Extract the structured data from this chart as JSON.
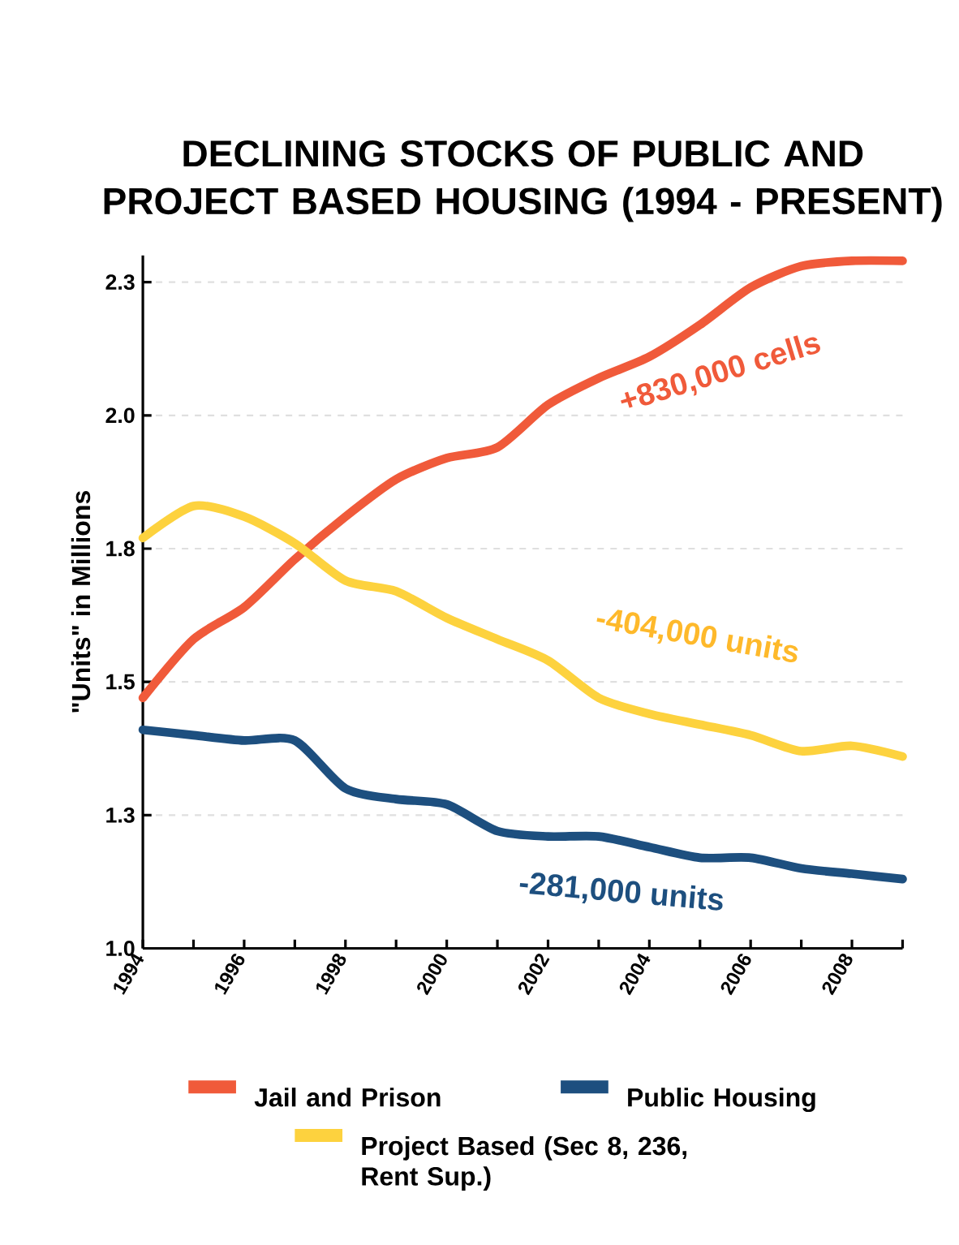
{
  "chart_data": {
    "type": "line",
    "title": "DECLINING STOCKS OF PUBLIC AND PROJECT BASED HOUSING (1994 - PRESENT)",
    "ylabel": "\"Units\" in Millions",
    "x": [
      1994,
      1995,
      1996,
      1997,
      1998,
      1999,
      2000,
      2001,
      2002,
      2003,
      2004,
      2005,
      2006,
      2007,
      2008,
      2009
    ],
    "series": [
      {
        "name": "Jail and Prison",
        "color": "#f05a3a",
        "values": [
          1.47,
          1.58,
          1.64,
          1.73,
          1.81,
          1.88,
          1.92,
          1.94,
          2.02,
          2.07,
          2.11,
          2.17,
          2.24,
          2.28,
          2.29,
          2.29
        ]
      },
      {
        "name": "Public Housing",
        "color": "#1d4f7f",
        "values": [
          1.41,
          1.4,
          1.39,
          1.39,
          1.3,
          1.28,
          1.27,
          1.22,
          1.21,
          1.21,
          1.19,
          1.17,
          1.17,
          1.15,
          1.14,
          1.13
        ]
      },
      {
        "name": "Project Based (Sec 8, 236, Rent Sup.)",
        "color": "#fdd23e",
        "values": [
          1.77,
          1.83,
          1.81,
          1.76,
          1.69,
          1.67,
          1.62,
          1.58,
          1.54,
          1.47,
          1.44,
          1.42,
          1.4,
          1.37,
          1.38,
          1.36
        ]
      }
    ],
    "annotations": [
      "+830,000 cells",
      "-281,000 units",
      "-404,000 units"
    ],
    "xlim": [
      1994,
      2009
    ],
    "xticks": [
      1994,
      {
        "value": 1995,
        "label": null
      },
      1996,
      {
        "value": 1997,
        "label": null
      },
      1998,
      {
        "value": 1999,
        "label": null
      },
      2000,
      {
        "value": 2001,
        "label": null
      },
      2002,
      {
        "value": 2003,
        "label": null
      },
      2004,
      {
        "value": 2005,
        "label": null
      },
      2006,
      {
        "value": 2007,
        "label": null
      },
      2008,
      {
        "value": 2009,
        "label": null
      }
    ],
    "ylim": [
      1.0,
      2.3
    ],
    "yticks": [
      {
        "value": 1.0,
        "label": "1.0"
      },
      {
        "value": 1.25,
        "label": "1.3"
      },
      {
        "value": 1.5,
        "label": "1.5"
      },
      {
        "value": 1.75,
        "label": "1.8"
      },
      {
        "value": 2.0,
        "label": "2.0"
      },
      {
        "value": 2.25,
        "label": "2.3"
      }
    ],
    "grid": "y",
    "legend": "bottom",
    "marker": "none",
    "line_style": "solid"
  }
}
